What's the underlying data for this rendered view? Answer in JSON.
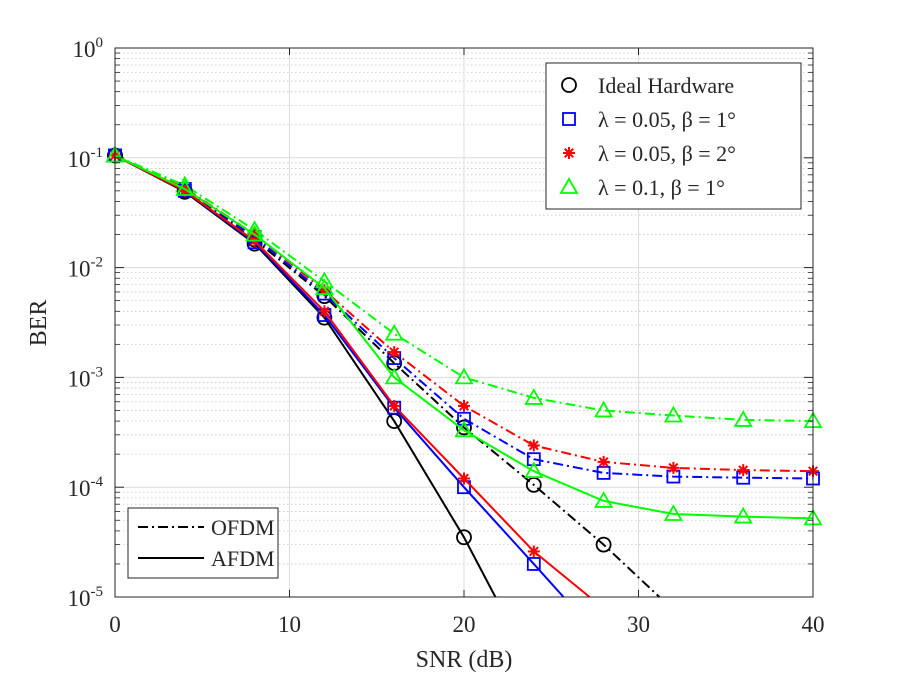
{
  "chart_data": {
    "type": "line",
    "title": "",
    "xlabel": "SNR (dB)",
    "ylabel": "BER",
    "xlim": [
      0,
      40
    ],
    "ylim": [
      1e-05,
      1
    ],
    "yscale": "log",
    "grid": true,
    "minor_grid": true,
    "x_ticks": [
      0,
      10,
      20,
      30,
      40
    ],
    "y_ticks": [
      {
        "base": "10",
        "exp": "0",
        "value": 1
      },
      {
        "base": "10",
        "exp": "-1",
        "value": 0.1
      },
      {
        "base": "10",
        "exp": "-2",
        "value": 0.01
      },
      {
        "base": "10",
        "exp": "-3",
        "value": 0.001
      },
      {
        "base": "10",
        "exp": "-4",
        "value": 0.0001
      },
      {
        "base": "10",
        "exp": "-5",
        "value": 1e-05
      }
    ],
    "marker_legend": {
      "position": "top-right",
      "entries": [
        {
          "label": "Ideal Hardware",
          "color": "#000000",
          "marker": "circle"
        },
        {
          "label": "λ = 0.05, β = 1°",
          "color": "#0000ff",
          "marker": "square"
        },
        {
          "label": "λ = 0.05, β = 2°",
          "color": "#ff0000",
          "marker": "asterisk"
        },
        {
          "label": "λ = 0.1, β = 1°",
          "color": "#00ff00",
          "marker": "triangle"
        }
      ]
    },
    "style_legend": {
      "position": "bottom-left",
      "entries": [
        {
          "label": "OFDM",
          "dash": "dashdot"
        },
        {
          "label": "AFDM",
          "dash": "solid"
        }
      ]
    },
    "series": [
      {
        "group": "Ideal Hardware",
        "scheme": "OFDM",
        "color": "#000000",
        "marker": "circle",
        "dash": "dashdot",
        "x": [
          0,
          4,
          8,
          12,
          16,
          20,
          24,
          28,
          31.2
        ],
        "y": [
          0.105,
          0.05,
          0.018,
          0.0055,
          0.00135,
          0.00035,
          0.000105,
          3e-05,
          1e-05
        ]
      },
      {
        "group": "λ = 0.05, β = 1°",
        "scheme": "OFDM",
        "color": "#0000ff",
        "marker": "square",
        "dash": "dashdot",
        "x": [
          0,
          4,
          8,
          12,
          16,
          20,
          24,
          28,
          32,
          36,
          40
        ],
        "y": [
          0.105,
          0.052,
          0.019,
          0.0058,
          0.0015,
          0.00042,
          0.00018,
          0.000135,
          0.000125,
          0.000122,
          0.00012
        ]
      },
      {
        "group": "λ = 0.05, β = 2°",
        "scheme": "OFDM",
        "color": "#ff0000",
        "marker": "asterisk",
        "dash": "dashdot",
        "x": [
          0,
          4,
          8,
          12,
          16,
          20,
          24,
          28,
          32,
          36,
          40
        ],
        "y": [
          0.105,
          0.053,
          0.02,
          0.0062,
          0.0017,
          0.00055,
          0.00024,
          0.00017,
          0.00015,
          0.000143,
          0.00014
        ]
      },
      {
        "group": "λ = 0.1, β = 1°",
        "scheme": "OFDM",
        "color": "#00ff00",
        "marker": "triangle",
        "dash": "dashdot",
        "x": [
          0,
          4,
          8,
          12,
          16,
          20,
          24,
          28,
          32,
          36,
          40
        ],
        "y": [
          0.105,
          0.056,
          0.022,
          0.0075,
          0.0025,
          0.001,
          0.00065,
          0.0005,
          0.00045,
          0.00041,
          0.0004
        ]
      },
      {
        "group": "Ideal Hardware",
        "scheme": "AFDM",
        "color": "#000000",
        "marker": "circle",
        "dash": "solid",
        "x": [
          0,
          4,
          8,
          12,
          16,
          20,
          21.8
        ],
        "y": [
          0.105,
          0.049,
          0.0165,
          0.0035,
          0.0004,
          3.5e-05,
          1e-05
        ]
      },
      {
        "group": "λ = 0.05, β = 1°",
        "scheme": "AFDM",
        "color": "#0000ff",
        "marker": "square",
        "dash": "solid",
        "x": [
          0,
          4,
          8,
          12,
          16,
          20,
          24,
          25.7
        ],
        "y": [
          0.105,
          0.05,
          0.017,
          0.0037,
          0.00053,
          0.0001,
          2e-05,
          1e-05
        ]
      },
      {
        "group": "λ = 0.05, β = 2°",
        "scheme": "AFDM",
        "color": "#ff0000",
        "marker": "asterisk",
        "dash": "solid",
        "x": [
          0,
          4,
          8,
          12,
          16,
          20,
          24,
          27.2
        ],
        "y": [
          0.105,
          0.05,
          0.0175,
          0.004,
          0.00055,
          0.00012,
          2.6e-05,
          1e-05
        ]
      },
      {
        "group": "λ = 0.1, β = 1°",
        "scheme": "AFDM",
        "color": "#00ff00",
        "marker": "triangle",
        "dash": "solid",
        "x": [
          0,
          4,
          8,
          12,
          16,
          20,
          24,
          28,
          32,
          36,
          40
        ],
        "y": [
          0.105,
          0.052,
          0.02,
          0.0065,
          0.001,
          0.00033,
          0.00014,
          7.5e-05,
          5.7e-05,
          5.4e-05,
          5.2e-05
        ]
      }
    ]
  }
}
